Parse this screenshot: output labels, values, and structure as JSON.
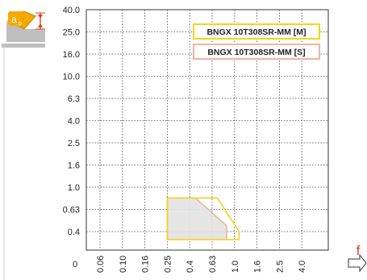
{
  "chart_data": {
    "type": "area",
    "title": "",
    "xlabel": "f",
    "ylabel": "a",
    "ylabel_subscript": "p",
    "x_ticks": [
      "0.06",
      "0.10",
      "0.16",
      "0.25",
      "0.4",
      "0.63",
      "1.0",
      "1.6",
      "2.5",
      "4.0"
    ],
    "y_ticks": [
      "40.0",
      "25.0",
      "16.0",
      "10.0",
      "6.3",
      "4.0",
      "2.5",
      "1.6",
      "1.0",
      "0.63",
      "0.4"
    ],
    "x_origin_label": "0",
    "grid": true,
    "legend_position": "top-right",
    "series": [
      {
        "name": "BNGX 10T308SR-MM [M]",
        "color": "#f2d41c",
        "fill": "none",
        "points": [
          [
            0.25,
            0.8
          ],
          [
            0.7,
            0.8
          ],
          [
            1.1,
            0.4
          ],
          [
            1.1,
            0.34
          ],
          [
            0.25,
            0.34
          ]
        ]
      },
      {
        "name": "BNGX 10T308SR-MM [S]",
        "color": "#f0b3a6",
        "fill": "#e2e2e2",
        "points": [
          [
            0.25,
            0.8
          ],
          [
            0.45,
            0.8
          ],
          [
            0.85,
            0.45
          ],
          [
            0.85,
            0.34
          ],
          [
            0.25,
            0.34
          ]
        ]
      }
    ]
  },
  "colors": {
    "icon_badge": "#f7a800",
    "icon_arrow": "#e04020",
    "axis_label_f": "#e04020"
  },
  "icons": {
    "depth_icon": "insert-depth-of-cut-icon",
    "feed_arrow": "feed-arrow-icon"
  }
}
